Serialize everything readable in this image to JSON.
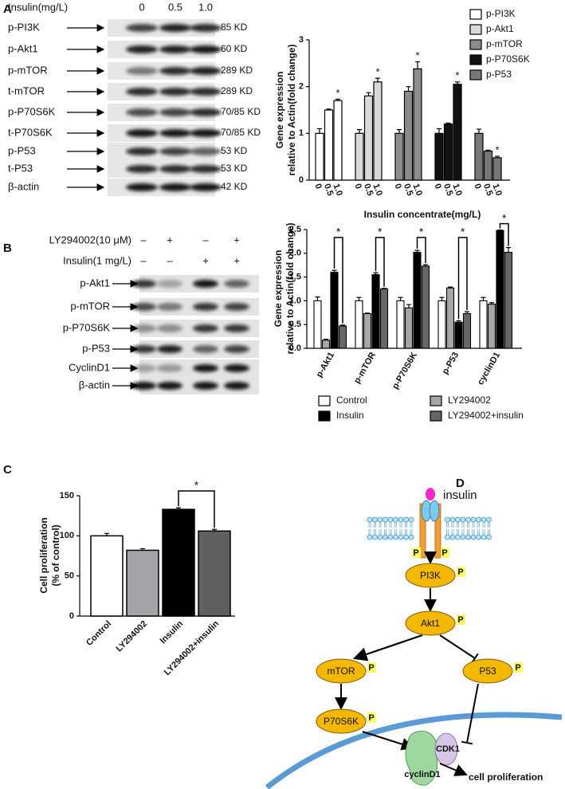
{
  "panel_labels": [
    "A",
    "B",
    "C",
    "D"
  ],
  "blot_a": {
    "header_label": "Insulin(mg/L)",
    "lanes": [
      "0",
      "0.5",
      "1.0"
    ],
    "rows": [
      {
        "label": "p-PI3K",
        "size": "85 KD"
      },
      {
        "label": "p-Akt1",
        "size": "60 KD"
      },
      {
        "label": "p-mTOR",
        "size": "289 KD"
      },
      {
        "label": "t-mTOR",
        "size": "289 KD"
      },
      {
        "label": "p-P70S6K",
        "size": "70/85 KD"
      },
      {
        "label": "t-P70S6K",
        "size": "70/85 KD"
      },
      {
        "label": "p-P53",
        "size": "53 KD"
      },
      {
        "label": "t-P53",
        "size": "53 KD"
      },
      {
        "label": "β-actin",
        "size": "42 KD"
      }
    ]
  },
  "blot_b": {
    "conditions": [
      {
        "label": "LY294002(10 μM)",
        "lanes": [
          "–",
          "+",
          "–",
          "+"
        ]
      },
      {
        "label": "Insulin(1 mg/L)",
        "lanes": [
          "–",
          "–",
          "+",
          "+"
        ]
      }
    ],
    "rows": [
      "p-Akt1",
      "p-mTOR",
      "p-P70S6K",
      "p-P53",
      "CyclinD1",
      "β-actin"
    ]
  },
  "chart_data": [
    {
      "type": "bar",
      "y_label": [
        "Gene expression",
        "relative to Actin(fold change)"
      ],
      "x_label": "Insulin concentrate(mg/L)",
      "categories": [
        "0",
        "0.5",
        "1.0"
      ],
      "series": [
        {
          "name": "p-PI3K",
          "color": "#ffffff",
          "values": [
            1.0,
            1.5,
            1.7
          ],
          "errors": [
            0.1,
            0.02,
            0.03
          ]
        },
        {
          "name": "p-Akt1",
          "color": "#d9d9d9",
          "values": [
            1.0,
            1.8,
            2.1
          ],
          "errors": [
            0.08,
            0.07,
            0.08
          ]
        },
        {
          "name": "p-mTOR",
          "color": "#8c8c8c",
          "values": [
            1.0,
            1.9,
            2.38
          ],
          "errors": [
            0.08,
            0.1,
            0.15
          ]
        },
        {
          "name": "p-P70S6K",
          "color": "#111111",
          "values": [
            1.0,
            1.2,
            2.05
          ],
          "errors": [
            0.1,
            0.02,
            0.05
          ]
        },
        {
          "name": "p-P53",
          "color": "#777777",
          "values": [
            1.0,
            0.62,
            0.48
          ],
          "errors": [
            0.09,
            0.02,
            0.03
          ]
        }
      ],
      "ylim": [
        0,
        3
      ],
      "yticks": [
        0,
        1,
        2,
        3
      ],
      "legend": "upper right",
      "annotations": [
        {
          "text": "*",
          "series": 0,
          "index": 2
        },
        {
          "text": "*",
          "series": 1,
          "index": 2
        },
        {
          "text": "*",
          "series": 2,
          "index": 2
        },
        {
          "text": "*",
          "series": 3,
          "index": 2
        },
        {
          "text": "*",
          "series": 4,
          "index": 2
        }
      ]
    },
    {
      "type": "bar",
      "y_label": [
        "Gene expression",
        "relative to Actin(fold change)"
      ],
      "categories": [
        "p-Akt1",
        "p-mTOR",
        "p-P70S6K",
        "p-P53",
        "cyclinD1"
      ],
      "series": [
        {
          "name": "Control",
          "color": "#ffffff",
          "values": [
            1.0,
            1.0,
            1.0,
            1.0,
            1.0
          ],
          "errors": [
            0.08,
            0.07,
            0.07,
            0.07,
            0.07
          ]
        },
        {
          "name": "LY294002",
          "color": "#a6a6a6",
          "values": [
            0.17,
            0.73,
            0.85,
            1.27,
            0.93
          ],
          "errors": [
            0.02,
            0.01,
            0.07,
            0.02,
            0.03
          ]
        },
        {
          "name": "Insulin",
          "color": "#000000",
          "values": [
            1.6,
            1.55,
            2.02,
            0.55,
            2.48
          ],
          "errors": [
            0.04,
            0.04,
            0.04,
            0.03,
            0.01
          ]
        },
        {
          "name": "LY294002+insulin",
          "color": "#666666",
          "values": [
            0.47,
            1.25,
            1.73,
            0.73,
            2.02
          ],
          "errors": [
            0.02,
            0.01,
            0.03,
            0.04,
            0.1
          ]
        }
      ],
      "ylim": [
        0,
        2.5
      ],
      "yticks": [
        {
          "value": 0,
          "label": "0.0"
        },
        0.5,
        {
          "value": 1,
          "label": "1.0"
        },
        1.5,
        {
          "value": 2,
          "label": "2.0"
        },
        2.5
      ],
      "legend": "bottom",
      "annotations": [
        {
          "text": "*",
          "category": 0,
          "from": 2,
          "to": 3
        },
        {
          "text": "*",
          "category": 1,
          "from": 2,
          "to": 3
        },
        {
          "text": "*",
          "category": 2,
          "from": 2,
          "to": 3
        },
        {
          "text": "*",
          "category": 3,
          "from": 2,
          "to": 3
        },
        {
          "text": "*",
          "category": 4,
          "from": 2,
          "to": 3
        }
      ]
    },
    {
      "type": "bar",
      "y_label": [
        "Cell proliferation",
        "(% of control)"
      ],
      "categories": [
        "Control",
        "LY294002",
        "Insulin",
        "LY294002+insulin"
      ],
      "values": [
        100,
        82,
        133,
        106
      ],
      "errors": [
        3,
        2,
        2,
        2
      ],
      "colors": [
        "#ffffff",
        "#a3a3a8",
        "#000000",
        "#5f5f5f"
      ],
      "ylim": [
        0,
        150
      ],
      "yticks": [
        0,
        50,
        100,
        150
      ],
      "annotations": [
        {
          "text": "*",
          "from": 2,
          "to": 3
        }
      ]
    }
  ],
  "diagram": {
    "ligand": "insulin",
    "phospho_label": "P",
    "nodes": [
      "PI3K",
      "Akt1",
      "mTOR",
      "P53",
      "P70S6K"
    ],
    "cyclin": "cyclinD1",
    "cdk": "CDK1",
    "outcome": "cell proliferation"
  }
}
